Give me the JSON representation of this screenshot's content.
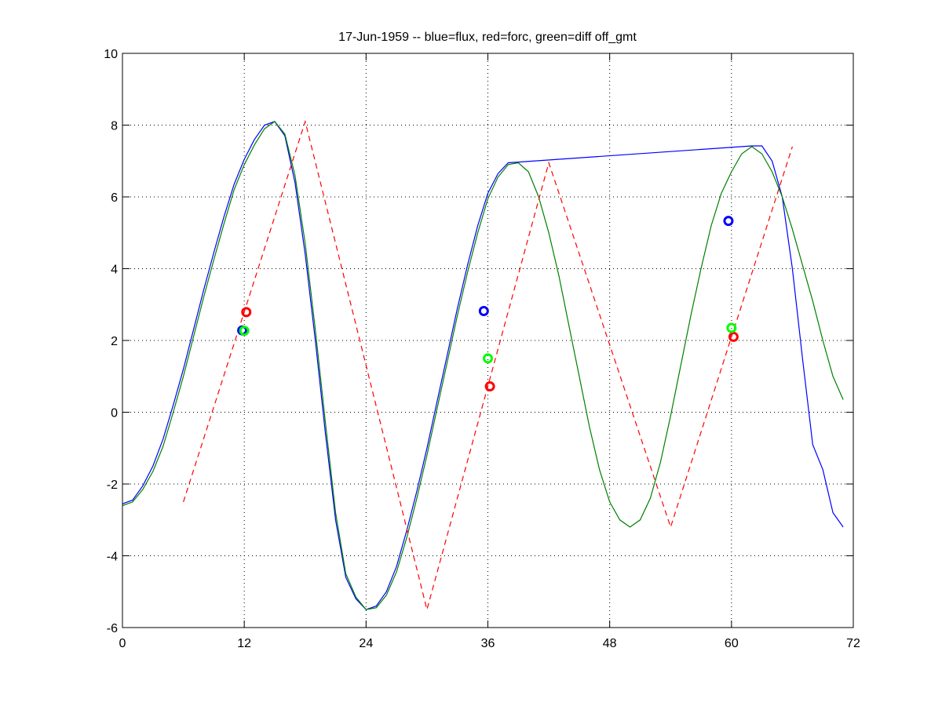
{
  "chart_data": {
    "type": "line",
    "title": "17-Jun-1959 -- blue=flux, red=forc, green=diff off_gmt",
    "xlabel": "",
    "ylabel": "",
    "xlim": [
      0,
      72
    ],
    "ylim": [
      -6,
      10
    ],
    "grid": true,
    "xticks": [
      0,
      12,
      24,
      36,
      48,
      60,
      72
    ],
    "yticks": [
      -6,
      -4,
      -2,
      0,
      2,
      4,
      6,
      8,
      10
    ],
    "colors": {
      "flux": "#0000ff",
      "forc": "#ff0000",
      "diff": "#008000",
      "diff_marker": "#00ff00"
    },
    "series": [
      {
        "name": "flux",
        "color": "#0000ff",
        "style": "solid",
        "x": [
          0,
          1,
          2,
          3,
          4,
          5,
          6,
          7,
          8,
          9,
          10,
          11,
          12,
          13,
          14,
          15,
          16,
          17,
          18,
          19,
          20,
          21,
          22,
          23,
          24,
          25,
          26,
          27,
          28,
          29,
          30,
          31,
          32,
          33,
          34,
          35,
          36,
          37,
          38,
          39,
          62,
          63,
          64,
          65,
          66,
          67,
          68,
          69,
          70,
          71
        ],
        "y": [
          -2.55,
          -2.45,
          -2.05,
          -1.5,
          -0.75,
          0.2,
          1.2,
          2.3,
          3.4,
          4.45,
          5.45,
          6.35,
          7.05,
          7.6,
          8.0,
          8.1,
          7.7,
          6.4,
          4.4,
          2.0,
          -0.6,
          -3.0,
          -4.6,
          -5.2,
          -5.5,
          -5.4,
          -5.0,
          -4.3,
          -3.3,
          -2.2,
          -1.0,
          0.3,
          1.6,
          2.9,
          4.1,
          5.2,
          6.1,
          6.65,
          6.95,
          6.97,
          7.42,
          7.42,
          7.0,
          6.0,
          4.0,
          1.5,
          -0.9,
          -1.6,
          -2.8,
          -3.2
        ]
      },
      {
        "name": "diff",
        "color": "#008000",
        "style": "solid",
        "x": [
          0,
          1,
          2,
          3,
          4,
          5,
          6,
          7,
          8,
          9,
          10,
          11,
          12,
          13,
          14,
          15,
          16,
          17,
          18,
          19,
          20,
          21,
          22,
          23,
          24,
          25,
          26,
          27,
          28,
          29,
          30,
          31,
          32,
          33,
          34,
          35,
          36,
          37,
          38,
          39,
          40,
          41,
          42,
          43,
          44,
          45,
          46,
          47,
          48,
          49,
          50,
          51,
          52,
          53,
          54,
          55,
          56,
          57,
          58,
          59,
          60,
          61,
          62,
          63,
          64,
          65,
          66,
          67,
          68,
          69,
          70,
          71
        ],
        "y": [
          -2.6,
          -2.5,
          -2.15,
          -1.65,
          -0.95,
          0.0,
          1.0,
          2.1,
          3.2,
          4.25,
          5.25,
          6.2,
          6.9,
          7.45,
          7.9,
          8.1,
          7.75,
          6.6,
          4.7,
          2.3,
          -0.3,
          -2.8,
          -4.5,
          -5.15,
          -5.5,
          -5.45,
          -5.1,
          -4.45,
          -3.5,
          -2.4,
          -1.2,
          0.1,
          1.4,
          2.7,
          3.9,
          5.0,
          5.95,
          6.55,
          6.9,
          6.95,
          6.7,
          6.0,
          5.0,
          3.8,
          2.4,
          1.0,
          -0.4,
          -1.6,
          -2.5,
          -3.0,
          -3.2,
          -3.0,
          -2.4,
          -1.4,
          -0.1,
          1.3,
          2.7,
          4.0,
          5.2,
          6.1,
          6.7,
          7.2,
          7.4,
          7.2,
          6.7,
          6.0,
          5.1,
          4.1,
          3.1,
          2.0,
          1.0,
          0.35
        ]
      },
      {
        "name": "forc",
        "color": "#ff0000",
        "style": "dashed",
        "x": [
          6,
          18,
          30,
          42,
          54,
          66
        ],
        "y": [
          -2.5,
          8.1,
          -5.5,
          6.95,
          -3.2,
          7.4
        ]
      }
    ],
    "markers": [
      {
        "name": "flux",
        "color": "#0000ff",
        "x": [
          11.8,
          35.6,
          59.7
        ],
        "y": [
          2.28,
          2.82,
          5.33
        ]
      },
      {
        "name": "forc",
        "color": "#ff0000",
        "x": [
          12.2,
          36.2,
          60.2
        ],
        "y": [
          2.79,
          0.72,
          2.1
        ]
      },
      {
        "name": "diff",
        "color": "#00ff00",
        "x": [
          12.0,
          36.0,
          60.0
        ],
        "y": [
          2.27,
          1.5,
          2.35
        ]
      }
    ]
  }
}
